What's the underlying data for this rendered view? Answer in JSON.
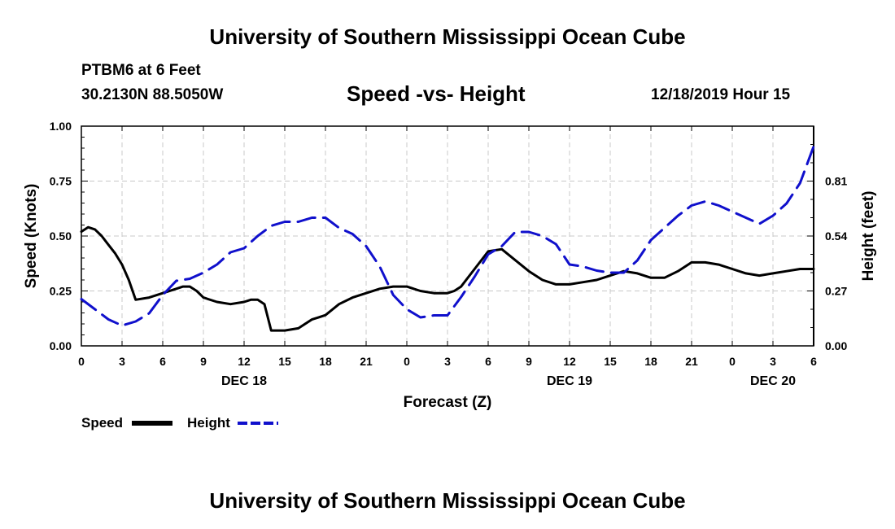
{
  "header": {
    "title": "University of Southern Mississippi Ocean Cube",
    "station": "PTBM6 at 6 Feet",
    "coords": "30.2130N 88.5050W",
    "chart_title": "Speed -vs- Height",
    "datetime": "12/18/2019 Hour 15"
  },
  "footer": {
    "title": "University of Southern Mississippi Ocean Cube"
  },
  "colors": {
    "speed": "#000000",
    "height": "#1010cc",
    "grid": "#c8c8c8"
  },
  "chart_data": {
    "type": "line",
    "title": "Speed -vs- Height",
    "xlabel": "Forecast (Z)",
    "ylabel": "Speed (Knots)",
    "y2label": "Height (feet)",
    "x_range_hours": [
      0,
      54
    ],
    "ylim": [
      0,
      1.0
    ],
    "y2lim": [
      0,
      1.08
    ],
    "yticks": [
      "0.00",
      "0.25",
      "0.50",
      "0.75",
      "1.00"
    ],
    "y2ticks": [
      "0.00",
      "0.27",
      "0.54",
      "0.81"
    ],
    "x_tick_labels": [
      "0",
      "3",
      "6",
      "9",
      "12",
      "15",
      "18",
      "21",
      "0",
      "3",
      "6",
      "9",
      "12",
      "15",
      "18",
      "21",
      "0",
      "3",
      "6"
    ],
    "day_labels": [
      "DEC 18",
      "DEC 19",
      "DEC 20"
    ],
    "grid": true,
    "legend": {
      "position": "bottom-left",
      "entries": [
        "Speed",
        "Height"
      ]
    },
    "series": [
      {
        "name": "Speed",
        "axis": "left",
        "style": "solid",
        "x": [
          0,
          0.5,
          1,
          1.5,
          2,
          2.5,
          3,
          3.5,
          4,
          5,
          6,
          7,
          7.5,
          8,
          8.5,
          9,
          10,
          11,
          12,
          12.5,
          13,
          13.5,
          14,
          15,
          16,
          17,
          17.5,
          18,
          19,
          20,
          21,
          22,
          23,
          24,
          25,
          26,
          27,
          27.5,
          28,
          29,
          30,
          31,
          32,
          33,
          34,
          35,
          36,
          37,
          38,
          39,
          40,
          41,
          42,
          43,
          44,
          45,
          46,
          47,
          48,
          49,
          50,
          51,
          52,
          53,
          54
        ],
        "values": [
          0.52,
          0.54,
          0.53,
          0.5,
          0.46,
          0.42,
          0.37,
          0.3,
          0.21,
          0.22,
          0.24,
          0.26,
          0.27,
          0.27,
          0.25,
          0.22,
          0.2,
          0.19,
          0.2,
          0.21,
          0.21,
          0.19,
          0.07,
          0.07,
          0.08,
          0.12,
          0.13,
          0.14,
          0.19,
          0.22,
          0.24,
          0.26,
          0.27,
          0.27,
          0.25,
          0.24,
          0.24,
          0.25,
          0.27,
          0.35,
          0.43,
          0.44,
          0.39,
          0.34,
          0.3,
          0.28,
          0.28,
          0.29,
          0.3,
          0.32,
          0.34,
          0.33,
          0.31,
          0.31,
          0.34,
          0.38,
          0.38,
          0.37,
          0.35,
          0.33,
          0.32,
          0.33,
          0.34,
          0.35,
          0.35
        ]
      },
      {
        "name": "Height",
        "axis": "right",
        "style": "dashed",
        "x": [
          0,
          1,
          2,
          3,
          4,
          5,
          6,
          7,
          8,
          9,
          10,
          11,
          12,
          13,
          14,
          15,
          16,
          17,
          18,
          19,
          20,
          21,
          22,
          23,
          24,
          25,
          26,
          27,
          28,
          29,
          30,
          31,
          32,
          33,
          34,
          35,
          36,
          37,
          38,
          39,
          40,
          41,
          42,
          43,
          44,
          45,
          46,
          47,
          48,
          49,
          50,
          51,
          52,
          53,
          54
        ],
        "values": [
          0.23,
          0.18,
          0.13,
          0.1,
          0.12,
          0.16,
          0.25,
          0.32,
          0.33,
          0.36,
          0.4,
          0.46,
          0.48,
          0.54,
          0.59,
          0.61,
          0.61,
          0.63,
          0.63,
          0.58,
          0.55,
          0.49,
          0.39,
          0.25,
          0.18,
          0.14,
          0.15,
          0.15,
          0.24,
          0.34,
          0.45,
          0.49,
          0.56,
          0.56,
          0.54,
          0.5,
          0.4,
          0.39,
          0.37,
          0.36,
          0.36,
          0.42,
          0.52,
          0.58,
          0.64,
          0.69,
          0.71,
          0.69,
          0.66,
          0.63,
          0.6,
          0.64,
          0.7,
          0.8,
          0.98
        ]
      }
    ]
  }
}
